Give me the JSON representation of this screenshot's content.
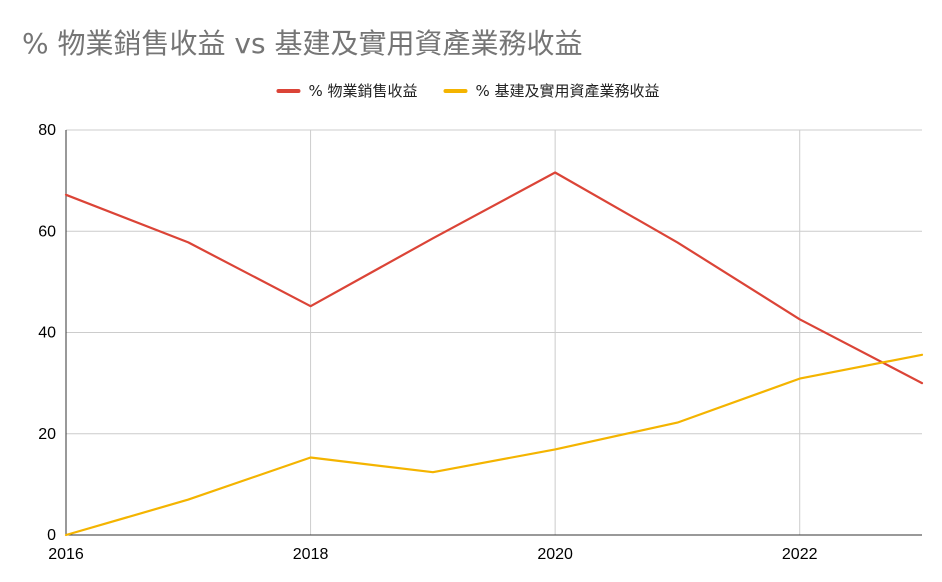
{
  "chart_data": {
    "type": "line",
    "title": "% 物業銷售收益 vs 基建及實用資產業務收益",
    "xlabel": "",
    "ylabel": "",
    "x": [
      2016,
      2017,
      2018,
      2019,
      2020,
      2021,
      2022,
      2023
    ],
    "xlim": [
      2016,
      2023
    ],
    "ylim": [
      0,
      80
    ],
    "x_ticks": [
      "2016",
      "2018",
      "2020",
      "2022"
    ],
    "y_ticks": [
      "0",
      "20",
      "40",
      "60",
      "80"
    ],
    "grid": true,
    "legend_position": "top",
    "series": [
      {
        "name": "% 物業銷售收益",
        "color": "#db4437",
        "values": [
          67.2,
          57.8,
          45.2,
          58.6,
          71.6,
          57.8,
          42.6,
          30.0
        ]
      },
      {
        "name": "% 基建及實用資產業務收益",
        "color": "#f4b400",
        "values": [
          0,
          7.0,
          15.3,
          12.4,
          16.9,
          22.2,
          30.9,
          35.6
        ]
      }
    ]
  }
}
